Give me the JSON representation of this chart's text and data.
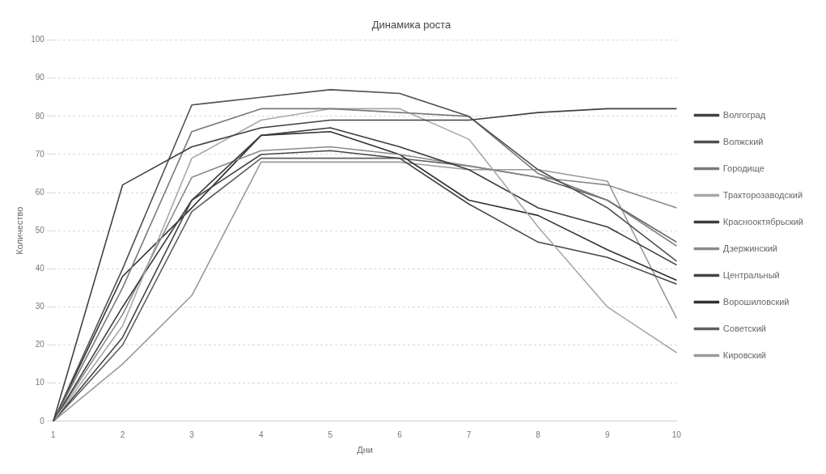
{
  "chart_data": {
    "type": "line",
    "title": "Динамика роста",
    "xlabel": "Дни",
    "ylabel": "Количество",
    "categories": [
      "1",
      "2",
      "3",
      "4",
      "5",
      "6",
      "7",
      "8",
      "9",
      "10"
    ],
    "ylim": [
      0,
      100
    ],
    "yticks": [
      0,
      10,
      20,
      30,
      40,
      50,
      60,
      70,
      80,
      90,
      100
    ],
    "grid": "y",
    "legend": "right",
    "marker": "none",
    "series": [
      {
        "name": "Волгоград",
        "color": "#404040",
        "values": [
          0,
          62,
          72,
          77,
          79,
          79,
          79,
          81,
          82,
          82
        ]
      },
      {
        "name": "Волжский",
        "color": "#505050",
        "values": [
          0,
          40,
          83,
          85,
          87,
          86,
          80,
          66,
          56,
          42
        ]
      },
      {
        "name": "Городище",
        "color": "#7a7a7a",
        "values": [
          0,
          35,
          76,
          82,
          82,
          81,
          80,
          65,
          58,
          46
        ]
      },
      {
        "name": "Тракторозаводский",
        "color": "#a8a8a8",
        "values": [
          0,
          25,
          69,
          79,
          82,
          82,
          74,
          51,
          30,
          18
        ]
      },
      {
        "name": "Краснооктябрьский",
        "color": "#3c3c3c",
        "values": [
          0,
          30,
          58,
          75,
          77,
          72,
          66,
          56,
          51,
          41
        ]
      },
      {
        "name": "Дзержинский",
        "color": "#8a8a8a",
        "values": [
          0,
          28,
          64,
          71,
          72,
          70,
          67,
          64,
          62,
          56
        ]
      },
      {
        "name": "Центральный",
        "color": "#454545",
        "values": [
          0,
          22,
          58,
          70,
          71,
          69,
          57,
          47,
          43,
          36
        ]
      },
      {
        "name": "Ворошиловский",
        "color": "#303030",
        "values": [
          0,
          38,
          56,
          75,
          76,
          70,
          58,
          54,
          45,
          37
        ]
      },
      {
        "name": "Советский",
        "color": "#606060",
        "values": [
          0,
          20,
          55,
          69,
          69,
          69,
          67,
          64,
          58,
          47
        ]
      },
      {
        "name": "Кировский",
        "color": "#9a9a9a",
        "values": [
          0,
          15,
          33,
          68,
          68,
          68,
          66,
          66,
          63,
          27
        ]
      }
    ]
  }
}
